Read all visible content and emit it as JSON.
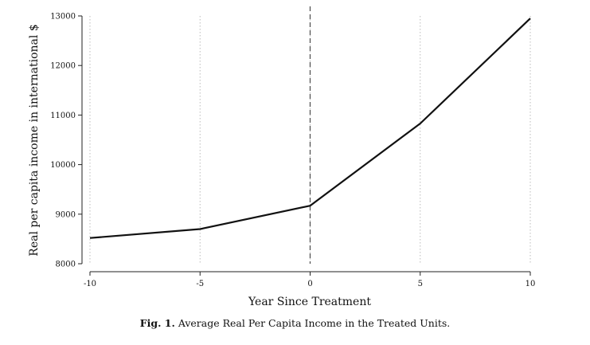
{
  "chart_data": {
    "type": "line",
    "xlabel": "Year Since Treatment",
    "ylabel": "Real per capita income in international $",
    "xlim": [
      -10,
      10
    ],
    "ylim": [
      8000,
      13000
    ],
    "xticks": [
      "-10",
      "-5",
      "0",
      "5",
      "10"
    ],
    "yticks": [
      "8000",
      "9000",
      "10000",
      "11000",
      "12000",
      "13000"
    ],
    "x_gridlines_dotted": true,
    "treatment_line_x": 0,
    "series": [
      {
        "x": [
          -10,
          -5,
          0,
          5,
          10
        ],
        "y": [
          8520,
          8700,
          9170,
          10830,
          12950
        ]
      }
    ]
  },
  "caption": {
    "label": "Fig. 1.",
    "text": "Average Real Per Capita Income in the Treated Units."
  }
}
